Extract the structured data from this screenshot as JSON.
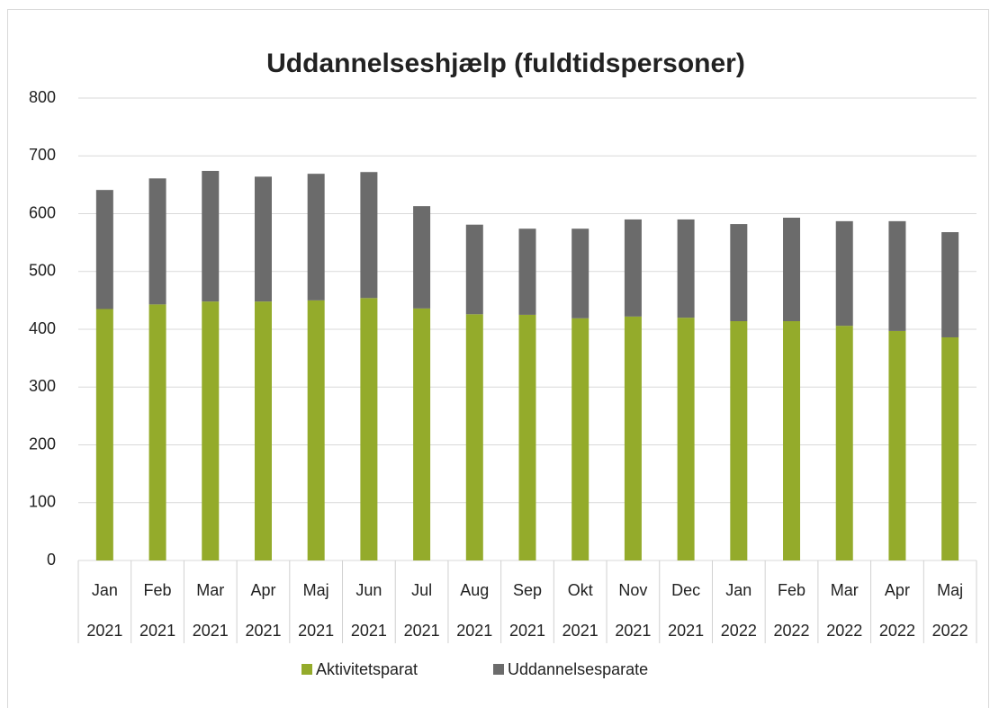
{
  "chart_data": {
    "type": "stacked_bar",
    "title": "Uddannelseshjælp (fuldtidspersoner)",
    "categories": [
      "Jan",
      "Feb",
      "Mar",
      "Apr",
      "Maj",
      "Jun",
      "Jul",
      "Aug",
      "Sep",
      "Okt",
      "Nov",
      "Dec",
      "Jan",
      "Feb",
      "Mar",
      "Apr",
      "Maj"
    ],
    "years": [
      "2021",
      "2021",
      "2021",
      "2021",
      "2021",
      "2021",
      "2021",
      "2021",
      "2021",
      "2021",
      "2021",
      "2021",
      "2022",
      "2022",
      "2022",
      "2022",
      "2022"
    ],
    "series": [
      {
        "name": "Aktivitetsparat",
        "color": "#94ab2b",
        "values": [
          435,
          443,
          448,
          448,
          450,
          454,
          436,
          426,
          425,
          419,
          422,
          420,
          414,
          414,
          406,
          397,
          386
        ]
      },
      {
        "name": "Uddannelsesparate",
        "color": "#6b6b6b",
        "values": [
          206,
          218,
          226,
          216,
          219,
          218,
          177,
          155,
          149,
          155,
          168,
          170,
          168,
          179,
          181,
          190,
          182
        ]
      }
    ],
    "ylim": [
      0,
      800
    ],
    "yticks": [
      0,
      100,
      200,
      300,
      400,
      500,
      600,
      700,
      800
    ],
    "grid": true,
    "legend": "bottom"
  }
}
